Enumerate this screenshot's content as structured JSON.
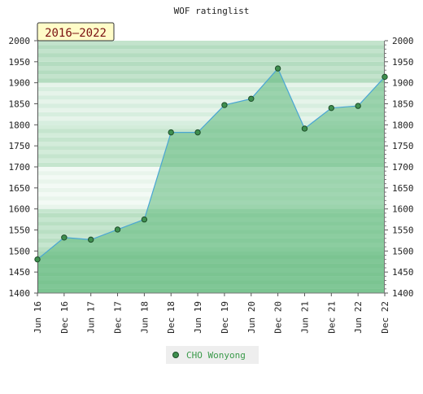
{
  "chart_data": {
    "type": "area",
    "title": "WOF ratinglist",
    "period_label": "2016–2022",
    "x_categories": [
      "Jun 16",
      "Dec 16",
      "Jun 17",
      "Dec 17",
      "Jun 18",
      "Dec 18",
      "Jun 19",
      "Dec 19",
      "Jun 20",
      "Dec 20",
      "Jun 21",
      "Dec 21",
      "Jun 22",
      "Dec 22"
    ],
    "ylim": [
      1400,
      2000
    ],
    "y_ticks": [
      1400,
      1450,
      1500,
      1550,
      1600,
      1650,
      1700,
      1750,
      1800,
      1850,
      1900,
      1950,
      2000
    ],
    "series": [
      {
        "name": "CHO Wonyong",
        "values": [
          1480,
          1532,
          1527,
          1551,
          1575,
          1782,
          1782,
          1847,
          1862,
          1934,
          1791,
          1840,
          1845,
          1914
        ]
      }
    ],
    "legend_position": "bottom",
    "grid": true,
    "colors": {
      "line": "#4aa6d4",
      "fill": "#5cb87a",
      "marker": "#3f8f4f",
      "legend_text": "#3a9a4a"
    }
  }
}
